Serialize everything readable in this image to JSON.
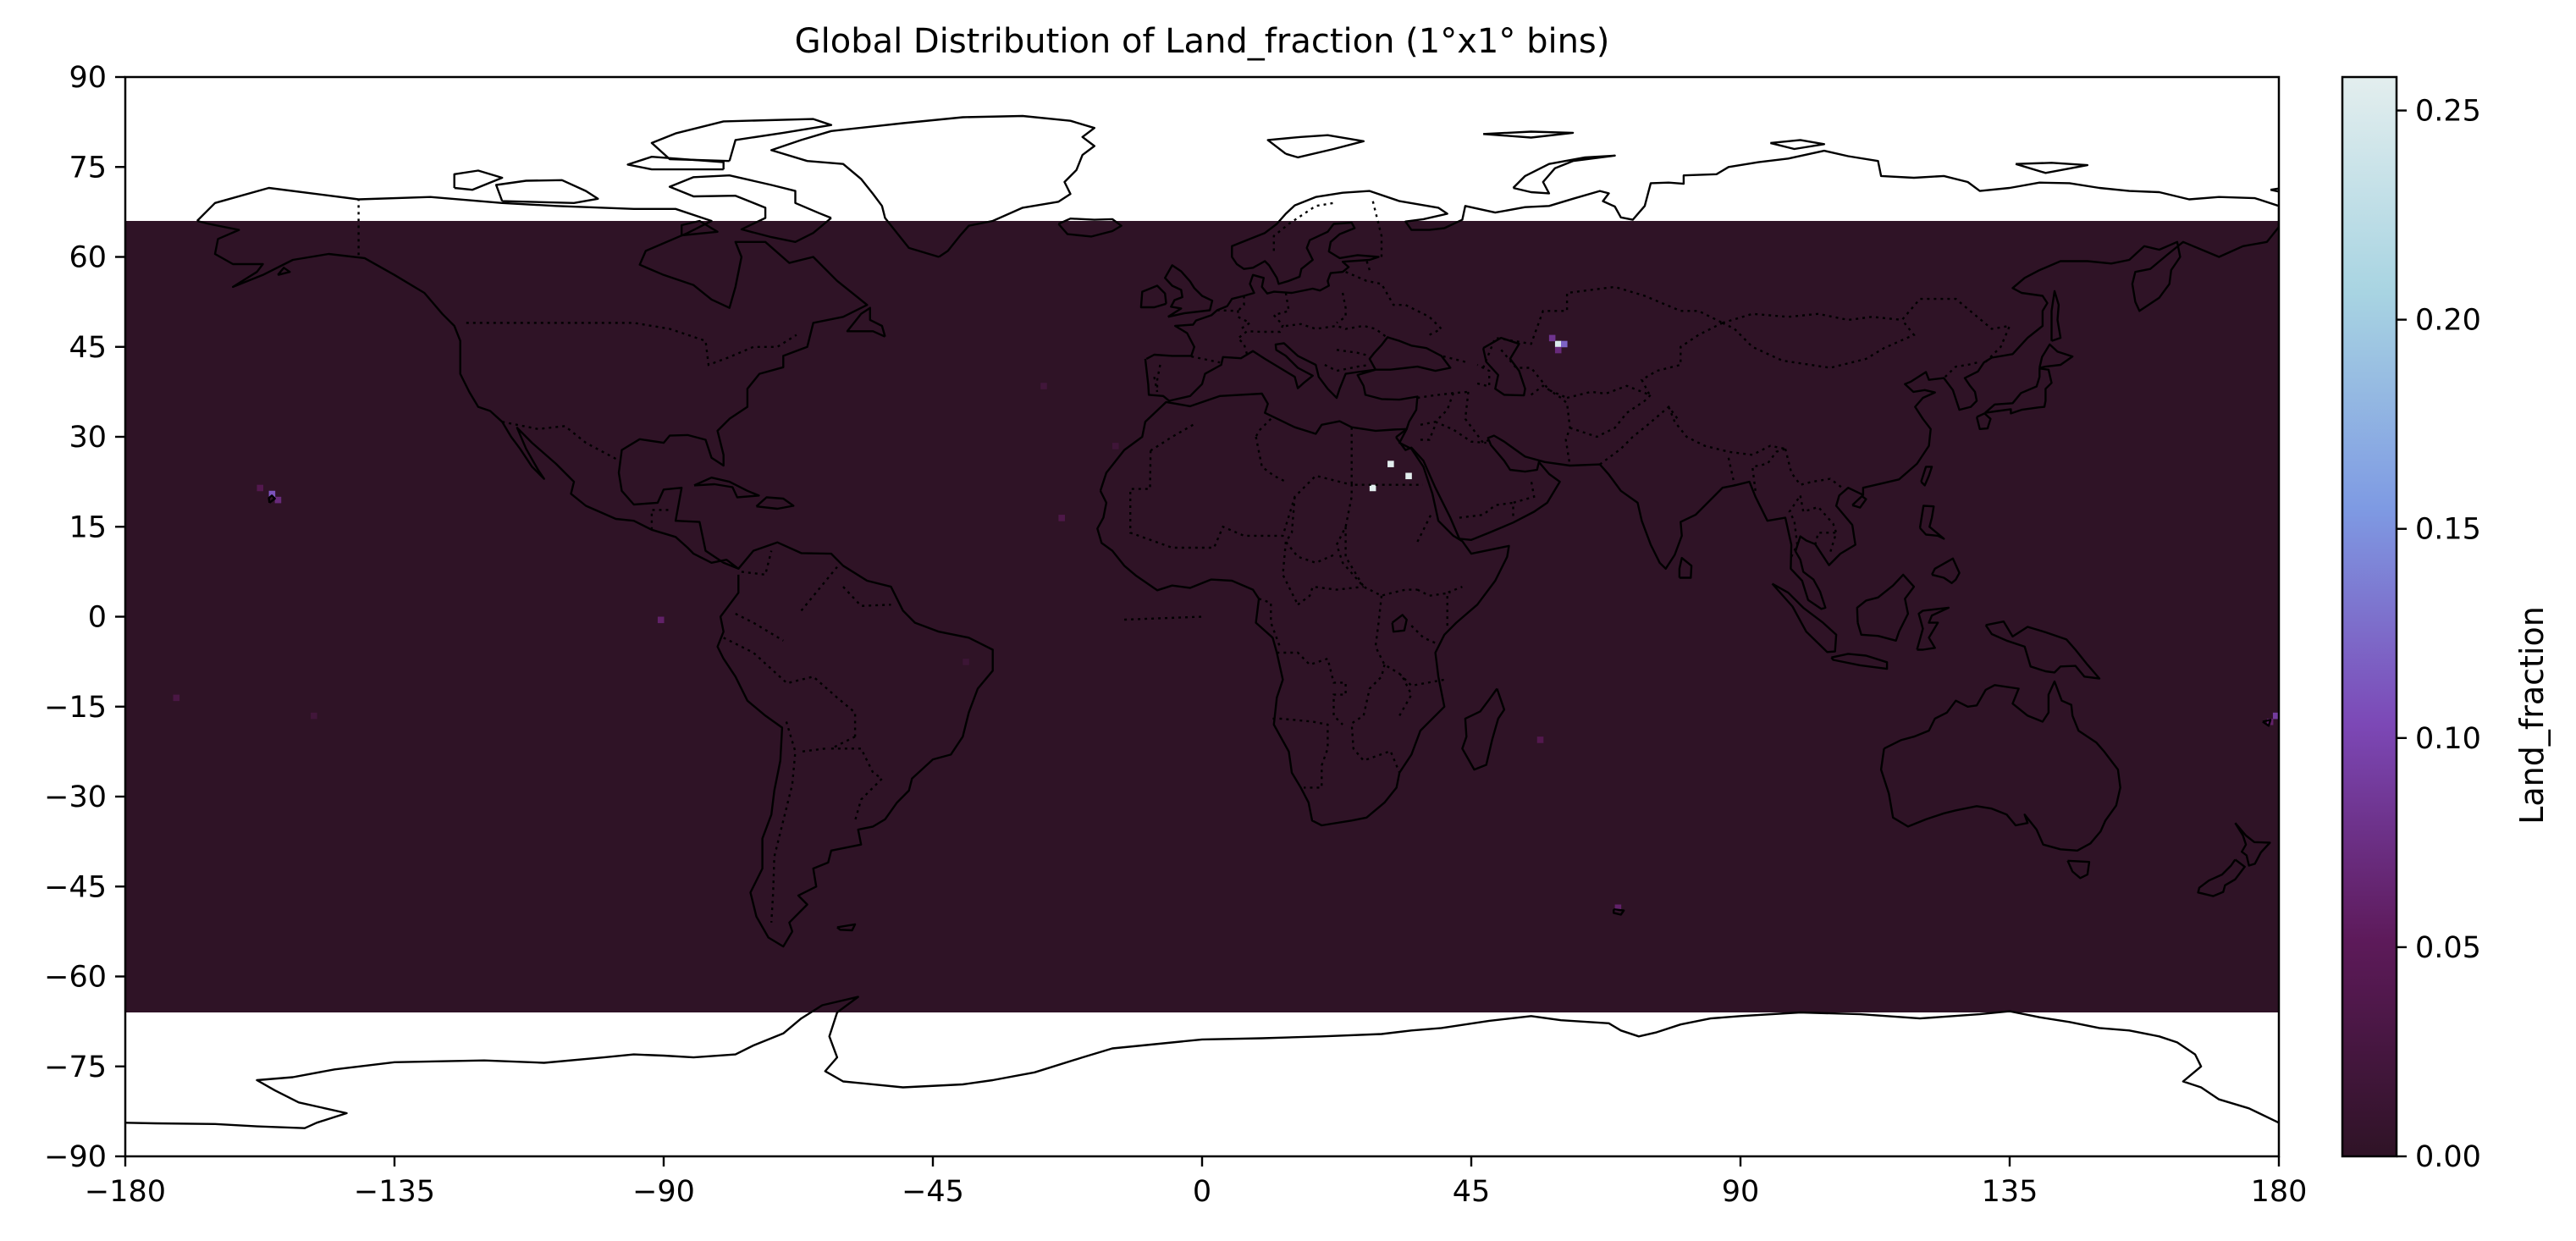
{
  "chart_data": {
    "type": "heatmap",
    "title": "Global Distribution of Land_fraction (1°x1° bins)",
    "xlabel": "",
    "ylabel": "",
    "xlim": [
      -180,
      180
    ],
    "ylim": [
      -90,
      90
    ],
    "x_ticks": [
      -180,
      -135,
      -90,
      -45,
      0,
      45,
      90,
      135,
      180
    ],
    "y_ticks": [
      90,
      75,
      60,
      45,
      30,
      15,
      0,
      -15,
      -30,
      -45,
      -60,
      -75,
      -90
    ],
    "x_tick_labels": [
      "−180",
      "−135",
      "−90",
      "−45",
      "0",
      "45",
      "90",
      "135",
      "180"
    ],
    "y_tick_labels": [
      "90",
      "75",
      "60",
      "45",
      "30",
      "15",
      "0",
      "−15",
      "−30",
      "−45",
      "−60",
      "−75",
      "−90"
    ],
    "data_lat_range": [
      -66,
      66
    ],
    "background_value": 0.0,
    "colormap": "twilight_shifted",
    "colorbar": {
      "label": "Land_fraction",
      "range": [
        0.0,
        0.258
      ],
      "ticks": [
        0.0,
        0.05,
        0.1,
        0.15,
        0.2,
        0.25
      ],
      "tick_labels": [
        "0.00",
        "0.05",
        "0.10",
        "0.15",
        "0.20",
        "0.25"
      ],
      "colors": [
        "#2f1326",
        "#5d1a5a",
        "#7c48b6",
        "#7e9ae3",
        "#a8d4e2",
        "#e3eeee"
      ]
    },
    "hotspots": [
      {
        "lon": 59,
        "lat": 45,
        "value": 0.25
      },
      {
        "lon": 60,
        "lat": 45,
        "value": 0.12
      },
      {
        "lon": 58,
        "lat": 46,
        "value": 0.08
      },
      {
        "lon": 59,
        "lat": 44,
        "value": 0.07
      },
      {
        "lon": -156,
        "lat": 20,
        "value": 0.11
      },
      {
        "lon": -155,
        "lat": 19,
        "value": 0.07
      },
      {
        "lon": -158,
        "lat": 21,
        "value": 0.04
      },
      {
        "lon": 179,
        "lat": -17,
        "value": 0.09
      },
      {
        "lon": 178,
        "lat": -18,
        "value": 0.06
      },
      {
        "lon": -91,
        "lat": -1,
        "value": 0.06
      },
      {
        "lon": 69,
        "lat": -49,
        "value": 0.06
      },
      {
        "lon": 56,
        "lat": -21,
        "value": 0.04
      },
      {
        "lon": -24,
        "lat": 16,
        "value": 0.035
      },
      {
        "lon": -172,
        "lat": -14,
        "value": 0.03
      },
      {
        "lon": -27,
        "lat": 38,
        "value": 0.02
      },
      {
        "lon": -15,
        "lat": 28,
        "value": 0.018
      },
      {
        "lon": -149,
        "lat": -17,
        "value": 0.02
      },
      {
        "lon": -40,
        "lat": -8,
        "value": 0.015
      },
      {
        "lon": 34,
        "lat": 23,
        "value": 0.258
      },
      {
        "lon": 28,
        "lat": 21,
        "value": 0.258
      },
      {
        "lon": 31,
        "lat": 25,
        "value": 0.258
      }
    ]
  }
}
